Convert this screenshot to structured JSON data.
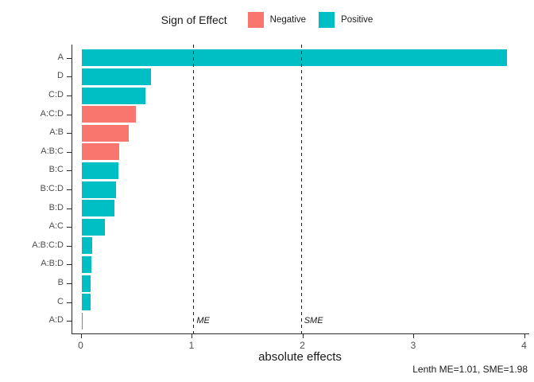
{
  "chart_data": {
    "type": "bar",
    "orientation": "horizontal",
    "legend_title": "Sign of Effect",
    "legend": [
      {
        "label": "Negative",
        "color": "#F8766D"
      },
      {
        "label": "Positive",
        "color": "#00BFC4"
      }
    ],
    "legend_position": "top",
    "categories": [
      "A",
      "D",
      "C:D",
      "A:C:D",
      "A:B",
      "A:B:C",
      "B:C",
      "B:C:D",
      "B:D",
      "A:C",
      "A:B:C:D",
      "A:B:D",
      "B",
      "C",
      "A:D"
    ],
    "values": [
      3.84,
      0.63,
      0.58,
      0.49,
      0.43,
      0.34,
      0.33,
      0.31,
      0.3,
      0.21,
      0.1,
      0.09,
      0.08,
      0.08,
      0.01
    ],
    "signs": [
      "positive",
      "positive",
      "positive",
      "negative",
      "negative",
      "negative",
      "positive",
      "positive",
      "positive",
      "positive",
      "positive",
      "positive",
      "positive",
      "positive",
      "positive"
    ],
    "xlabel": "absolute effects",
    "xlim": [
      0,
      4
    ],
    "xticks": [
      0,
      1,
      2,
      3,
      4
    ],
    "grid": false,
    "reference_lines": [
      {
        "value": 1.01,
        "label": "ME"
      },
      {
        "value": 1.98,
        "label": "SME"
      }
    ],
    "caption": "Lenth ME=1.01, SME=1.98"
  }
}
